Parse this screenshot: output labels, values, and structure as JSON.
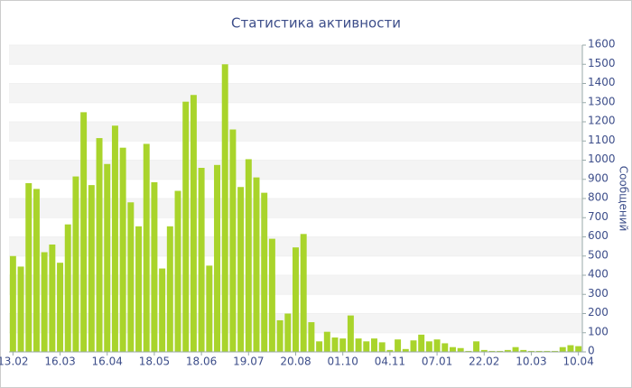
{
  "chart_data": {
    "type": "bar",
    "title": "Статистика активности",
    "y_axis_label": "Сообщений",
    "categories": [
      "13.02",
      null,
      null,
      null,
      null,
      null,
      "16.03",
      null,
      null,
      null,
      null,
      null,
      "16.04",
      null,
      null,
      null,
      null,
      null,
      "18.05",
      null,
      null,
      null,
      null,
      null,
      "18.06",
      null,
      null,
      null,
      null,
      null,
      "19.07",
      null,
      null,
      null,
      null,
      null,
      "20.08",
      null,
      null,
      null,
      null,
      null,
      "01.10",
      null,
      null,
      null,
      null,
      null,
      "04.11",
      null,
      null,
      null,
      null,
      null,
      "07.01",
      null,
      null,
      null,
      null,
      null,
      "22.02",
      null,
      null,
      null,
      null,
      null,
      "10.03",
      null,
      null,
      null,
      null,
      null,
      "10.04"
    ],
    "values": [
      500,
      445,
      880,
      850,
      520,
      560,
      465,
      665,
      915,
      1250,
      870,
      1115,
      980,
      1180,
      1065,
      780,
      655,
      1085,
      885,
      435,
      655,
      840,
      1305,
      1340,
      960,
      450,
      975,
      1500,
      1160,
      860,
      1005,
      910,
      830,
      590,
      165,
      200,
      545,
      615,
      155,
      55,
      105,
      75,
      70,
      190,
      70,
      55,
      70,
      50,
      10,
      65,
      15,
      60,
      90,
      55,
      65,
      45,
      25,
      20,
      5,
      55,
      10,
      5,
      5,
      10,
      25,
      10,
      5,
      5,
      5,
      5,
      25,
      35,
      30
    ],
    "color": "#a9d42b",
    "ylim": [
      0,
      1600
    ],
    "yticks": [
      0,
      100,
      200,
      300,
      400,
      500,
      600,
      700,
      800,
      900,
      1000,
      1100,
      1200,
      1300,
      1400,
      1500,
      1600
    ],
    "grid": true
  }
}
